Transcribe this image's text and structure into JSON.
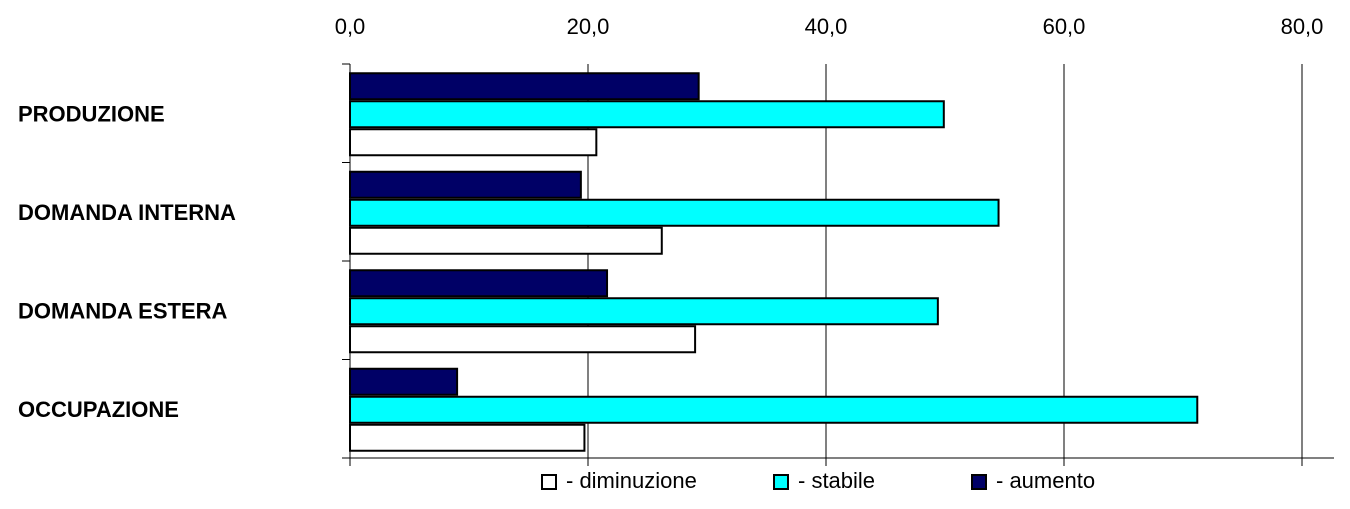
{
  "chart_data": {
    "type": "bar",
    "orientation": "horizontal",
    "title": "",
    "xlabel": "",
    "ylabel": "",
    "categories": [
      "PRODUZIONE",
      "DOMANDA INTERNA",
      "DOMANDA ESTERA",
      "OCCUPAZIONE"
    ],
    "series": [
      {
        "name": "- aumento",
        "color": "#000066",
        "values": [
          29.3,
          19.4,
          21.6,
          9.0
        ]
      },
      {
        "name": "- stabile",
        "color": "#00ffff",
        "values": [
          49.9,
          54.5,
          49.4,
          71.2
        ]
      },
      {
        "name": "- diminuzione",
        "color": "#ffffff",
        "values": [
          20.7,
          26.2,
          29.0,
          19.7
        ]
      }
    ],
    "legend_order": [
      2,
      1,
      0
    ],
    "xlim": [
      0,
      80
    ],
    "xticks": [
      0,
      20,
      40,
      60,
      80
    ],
    "xtick_labels": [
      "0,0",
      "20,0",
      "40,0",
      "60,0",
      "80,0"
    ],
    "tick_position": "top",
    "grid": true,
    "legend_position": "bottom"
  }
}
